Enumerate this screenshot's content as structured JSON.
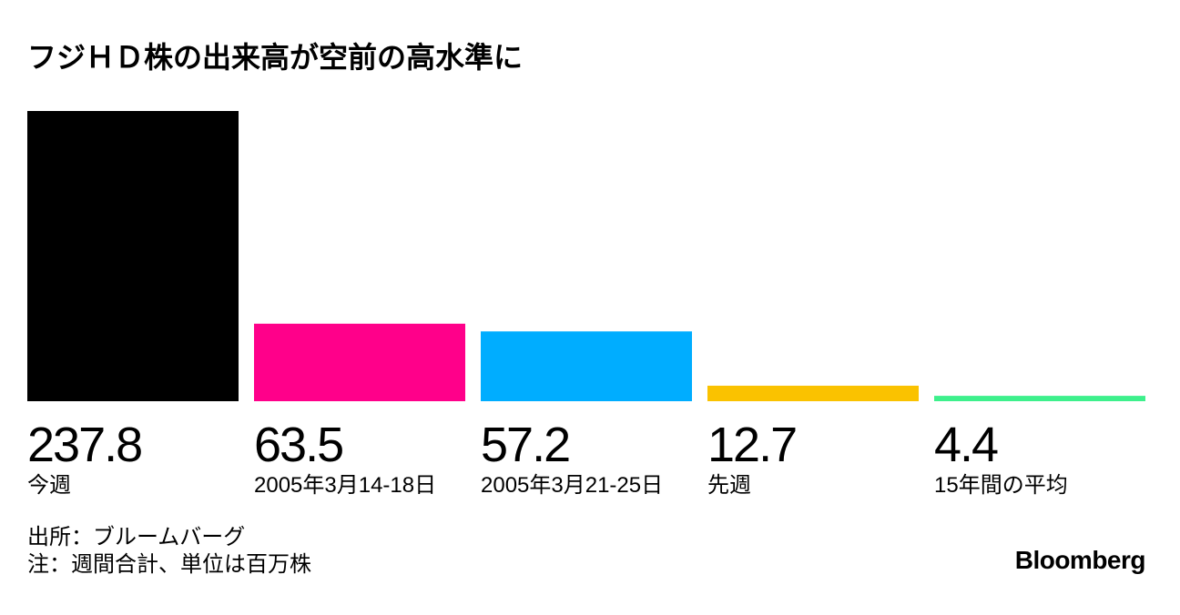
{
  "chart_data": {
    "type": "bar",
    "title": "フジＨＤ株の出来高が空前の高水準に",
    "categories": [
      "今週",
      "2005年3月14-18日",
      "2005年3月21-25日",
      "先週",
      "15年間の平均"
    ],
    "values": [
      237.8,
      63.5,
      57.2,
      12.7,
      4.4
    ],
    "colors": [
      "#000000",
      "#ff008a",
      "#00adff",
      "#fac200",
      "#3ef08c"
    ],
    "source": "出所：ブルームバーグ",
    "note": "注：週間合計、単位は百万株",
    "logo": "Bloomberg"
  }
}
